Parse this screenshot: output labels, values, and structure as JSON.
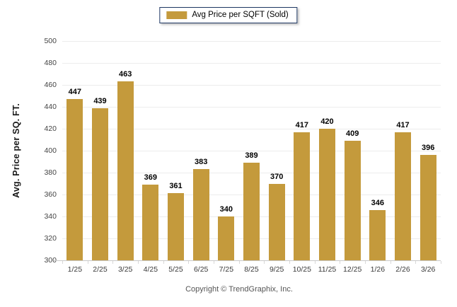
{
  "legend": {
    "label": "Avg Price per SQFT (Sold)",
    "swatch_color": "#C49A3C"
  },
  "chart_data": {
    "type": "bar",
    "categories": [
      "1/25",
      "2/25",
      "3/25",
      "4/25",
      "5/25",
      "6/25",
      "7/25",
      "8/25",
      "9/25",
      "10/25",
      "11/25",
      "12/25",
      "1/26",
      "2/26",
      "3/26"
    ],
    "values": [
      447,
      439,
      463,
      369,
      361,
      383,
      340,
      389,
      370,
      417,
      420,
      409,
      346,
      417,
      396
    ],
    "series_name": "Avg Price per SQFT (Sold)",
    "title": "",
    "xlabel": "",
    "ylabel": "Avg. Price per SQ. FT.",
    "ylim": [
      300,
      500
    ],
    "ytick_step": 20,
    "grid": true,
    "legend_position": "top-center",
    "bar_color": "#C49A3C",
    "value_labels": true
  },
  "footer": {
    "copyright": "Copyright © TrendGraphix, Inc."
  },
  "colors": {
    "bar": "#C49A3C",
    "grid": "#ECECEC",
    "axis_line": "#C9C9C9",
    "tick_label": "#444444",
    "legend_border": "#1F3864"
  }
}
